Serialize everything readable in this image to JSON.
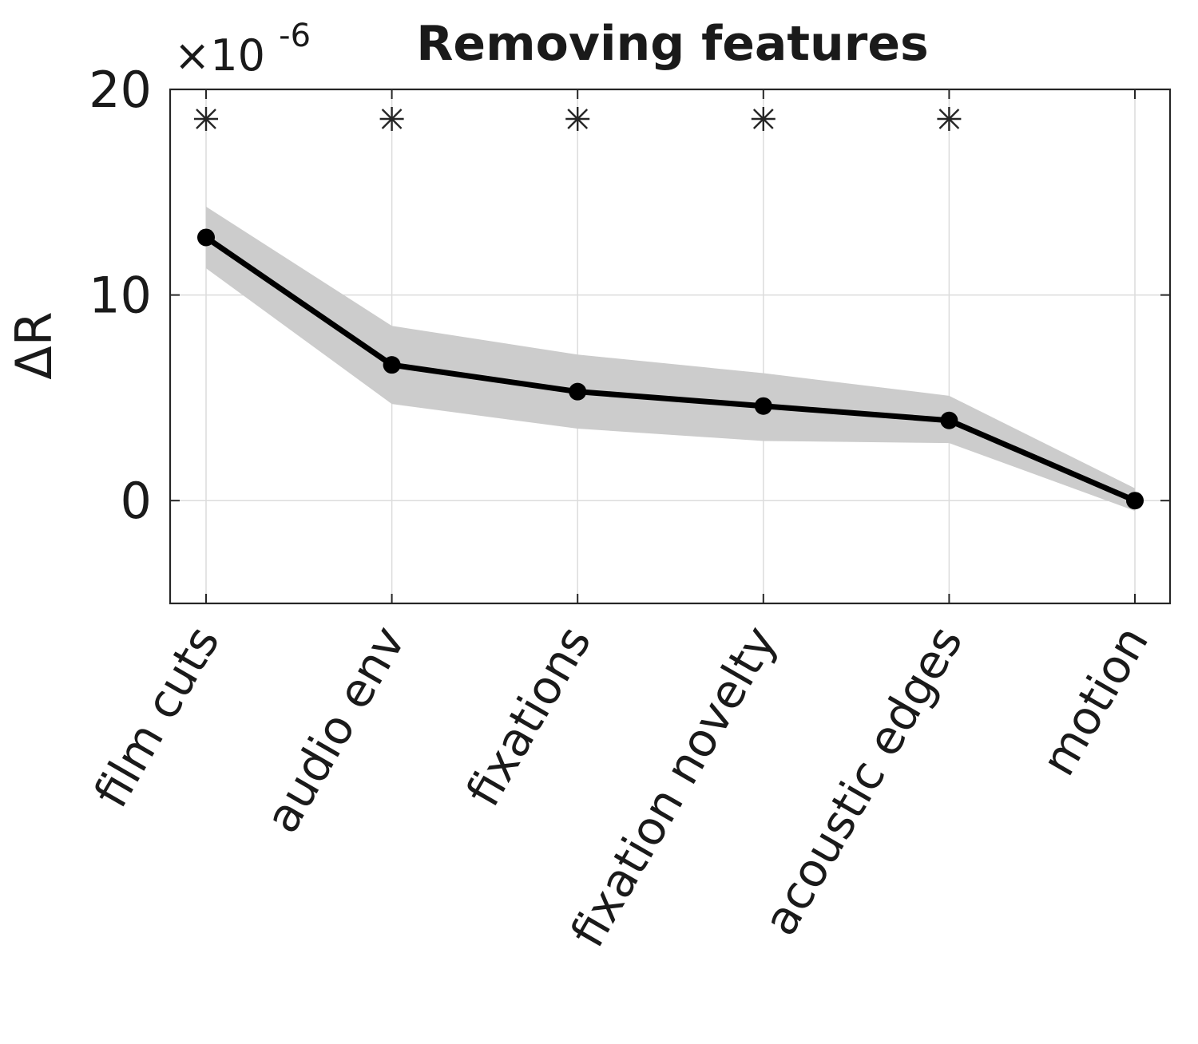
{
  "chart_data": {
    "type": "line",
    "title": "Removing features",
    "ylabel": "ΔR",
    "xlabel": "",
    "y_exponent_label": "×10",
    "y_exponent_power": "-6",
    "categories": [
      "film cuts",
      "audio env",
      "fixations",
      "fixation novelty",
      "acoustic edges",
      "motion"
    ],
    "series": [
      {
        "values": [
          12.8,
          6.6,
          5.3,
          4.6,
          3.9,
          0.0
        ],
        "ci_upper": [
          14.3,
          8.5,
          7.1,
          6.2,
          5.1,
          0.6
        ],
        "ci_lower": [
          11.3,
          4.7,
          3.5,
          2.9,
          2.8,
          -0.5
        ]
      }
    ],
    "significant": [
      true,
      true,
      true,
      true,
      true,
      false
    ],
    "significance_marker": "*",
    "ylim": [
      -5,
      20
    ],
    "yticks": [
      0,
      10,
      20
    ],
    "ytick_labels": [
      "0",
      "10",
      "20"
    ],
    "grid": true,
    "colors": {
      "line": "#000000",
      "band": "#cccccc",
      "grid": "#dcdcdc",
      "axis": "#262626"
    }
  }
}
